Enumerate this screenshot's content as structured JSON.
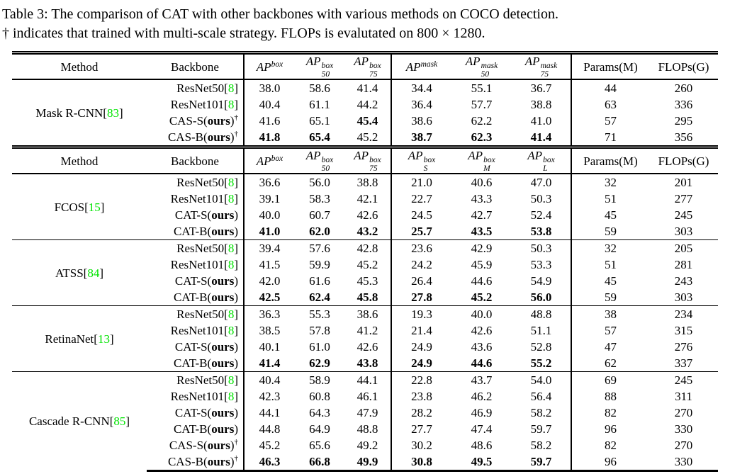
{
  "caption": {
    "line1": "Table 3: The comparison of CAT with other backbones with various methods on COCO detection.",
    "line2_prefix": "† indicates that trained with multi-scale strategy. FLOPs is evalutated on ",
    "line2_math": "800 × 1280",
    "line2_suffix": "."
  },
  "colors": {
    "ref_green": "#00e400",
    "text": "#000000"
  },
  "punct": {
    "open_bracket": "[",
    "close_bracket": "]",
    "open_paren": "(",
    "close_paren": ")",
    "dagger": "†"
  },
  "shared": {
    "ours_label": "ours"
  },
  "headers": {
    "method": "Method",
    "backbone": "Backbone",
    "params": "Params(M)",
    "flops": "FLOPs(G)",
    "groupA": [
      {
        "base": "AP",
        "sup": "box",
        "sub": ""
      },
      {
        "base": "AP",
        "sup": "box",
        "sub": "50"
      },
      {
        "base": "AP",
        "sup": "box",
        "sub": "75"
      },
      {
        "base": "AP",
        "sup": "mask",
        "sub": ""
      },
      {
        "base": "AP",
        "sup": "mask",
        "sub": "50"
      },
      {
        "base": "AP",
        "sup": "mask",
        "sub": "75"
      }
    ],
    "groupB": [
      {
        "base": "AP",
        "sup": "box",
        "sub": ""
      },
      {
        "base": "AP",
        "sup": "box",
        "sub": "50"
      },
      {
        "base": "AP",
        "sup": "box",
        "sub": "75"
      },
      {
        "base": "AP",
        "sup": "box",
        "sub": "S"
      },
      {
        "base": "AP",
        "sup": "box",
        "sub": "M"
      },
      {
        "base": "AP",
        "sup": "box",
        "sub": "L"
      }
    ]
  },
  "sections": [
    {
      "method": "Mask R-CNN",
      "method_ref": "83",
      "subtable": "A",
      "rows": [
        {
          "backbone": "ResNet50",
          "ref": "8",
          "vals": [
            "38.0",
            "58.6",
            "41.4",
            "34.4",
            "55.1",
            "36.7"
          ],
          "bold": [
            0,
            0,
            0,
            0,
            0,
            0
          ],
          "params": "44",
          "flops": "260"
        },
        {
          "backbone": "ResNet101",
          "ref": "8",
          "vals": [
            "40.4",
            "61.1",
            "44.2",
            "36.4",
            "57.7",
            "38.8"
          ],
          "bold": [
            0,
            0,
            0,
            0,
            0,
            0
          ],
          "params": "63",
          "flops": "336"
        },
        {
          "backbone": "CAS-S",
          "ours": true,
          "dagger": true,
          "vals": [
            "41.6",
            "65.1",
            "45.4",
            "38.6",
            "62.2",
            "41.0"
          ],
          "bold": [
            0,
            0,
            1,
            0,
            0,
            0
          ],
          "params": "57",
          "flops": "295"
        },
        {
          "backbone": "CAS-B",
          "ours": true,
          "dagger": true,
          "vals": [
            "41.8",
            "65.4",
            "45.2",
            "38.7",
            "62.3",
            "41.4"
          ],
          "bold": [
            1,
            1,
            0,
            1,
            1,
            1
          ],
          "params": "71",
          "flops": "356"
        }
      ]
    },
    {
      "method": "FCOS",
      "method_ref": "15",
      "subtable": "B",
      "rows": [
        {
          "backbone": "ResNet50",
          "ref": "8",
          "vals": [
            "36.6",
            "56.0",
            "38.8",
            "21.0",
            "40.6",
            "47.0"
          ],
          "bold": [
            0,
            0,
            0,
            0,
            0,
            0
          ],
          "params": "32",
          "flops": "201"
        },
        {
          "backbone": "ResNet101",
          "ref": "8",
          "vals": [
            "39.1",
            "58.3",
            "42.1",
            "22.7",
            "43.3",
            "50.3"
          ],
          "bold": [
            0,
            0,
            0,
            0,
            0,
            0
          ],
          "params": "51",
          "flops": "277"
        },
        {
          "backbone": "CAT-S",
          "ours": true,
          "dagger": false,
          "vals": [
            "40.0",
            "60.7",
            "42.6",
            "24.5",
            "42.7",
            "52.4"
          ],
          "bold": [
            0,
            0,
            0,
            0,
            0,
            0
          ],
          "params": "45",
          "flops": "245"
        },
        {
          "backbone": "CAT-B",
          "ours": true,
          "dagger": false,
          "vals": [
            "41.0",
            "62.0",
            "43.2",
            "25.7",
            "43.5",
            "53.8"
          ],
          "bold": [
            1,
            1,
            1,
            1,
            1,
            1
          ],
          "params": "59",
          "flops": "303"
        }
      ]
    },
    {
      "method": "ATSS",
      "method_ref": "84",
      "subtable": "B",
      "rows": [
        {
          "backbone": "ResNet50",
          "ref": "8",
          "vals": [
            "39.4",
            "57.6",
            "42.8",
            "23.6",
            "42.9",
            "50.3"
          ],
          "bold": [
            0,
            0,
            0,
            0,
            0,
            0
          ],
          "params": "32",
          "flops": "205"
        },
        {
          "backbone": "ResNet101",
          "ref": "8",
          "vals": [
            "41.5",
            "59.9",
            "45.2",
            "24.2",
            "45.9",
            "53.3"
          ],
          "bold": [
            0,
            0,
            0,
            0,
            0,
            0
          ],
          "params": "51",
          "flops": "281"
        },
        {
          "backbone": "CAT-S",
          "ours": true,
          "dagger": false,
          "vals": [
            "42.0",
            "61.6",
            "45.3",
            "26.4",
            "44.6",
            "54.9"
          ],
          "bold": [
            0,
            0,
            0,
            0,
            0,
            0
          ],
          "params": "45",
          "flops": "243"
        },
        {
          "backbone": "CAT-B",
          "ours": true,
          "dagger": false,
          "vals": [
            "42.5",
            "62.4",
            "45.8",
            "27.8",
            "45.2",
            "56.0"
          ],
          "bold": [
            1,
            1,
            1,
            1,
            1,
            1
          ],
          "params": "59",
          "flops": "303"
        }
      ]
    },
    {
      "method": "RetinaNet",
      "method_ref": "13",
      "subtable": "B",
      "rows": [
        {
          "backbone": "ResNet50",
          "ref": "8",
          "vals": [
            "36.3",
            "55.3",
            "38.6",
            "19.3",
            "40.0",
            "48.8"
          ],
          "bold": [
            0,
            0,
            0,
            0,
            0,
            0
          ],
          "params": "38",
          "flops": "234"
        },
        {
          "backbone": "ResNet101",
          "ref": "8",
          "vals": [
            "38.5",
            "57.8",
            "41.2",
            "21.4",
            "42.6",
            "51.1"
          ],
          "bold": [
            0,
            0,
            0,
            0,
            0,
            0
          ],
          "params": "57",
          "flops": "315"
        },
        {
          "backbone": "CAT-S",
          "ours": true,
          "dagger": false,
          "vals": [
            "40.1",
            "61.0",
            "42.6",
            "24.9",
            "43.6",
            "52.8"
          ],
          "bold": [
            0,
            0,
            0,
            0,
            0,
            0
          ],
          "params": "47",
          "flops": "276"
        },
        {
          "backbone": "CAT-B",
          "ours": true,
          "dagger": false,
          "vals": [
            "41.4",
            "62.9",
            "43.8",
            "24.9",
            "44.6",
            "55.2"
          ],
          "bold": [
            1,
            1,
            1,
            1,
            1,
            1
          ],
          "params": "62",
          "flops": "337"
        }
      ]
    },
    {
      "method": "Cascade R-CNN",
      "method_ref": "85",
      "subtable": "B",
      "rows": [
        {
          "backbone": "ResNet50",
          "ref": "8",
          "vals": [
            "40.4",
            "58.9",
            "44.1",
            "22.8",
            "43.7",
            "54.0"
          ],
          "bold": [
            0,
            0,
            0,
            0,
            0,
            0
          ],
          "params": "69",
          "flops": "245"
        },
        {
          "backbone": "ResNet101",
          "ref": "8",
          "vals": [
            "42.3",
            "60.8",
            "46.1",
            "23.8",
            "46.2",
            "56.4"
          ],
          "bold": [
            0,
            0,
            0,
            0,
            0,
            0
          ],
          "params": "88",
          "flops": "311"
        },
        {
          "backbone": "CAT-S",
          "ours": true,
          "dagger": false,
          "vals": [
            "44.1",
            "64.3",
            "47.9",
            "28.2",
            "46.9",
            "58.2"
          ],
          "bold": [
            0,
            0,
            0,
            0,
            0,
            0
          ],
          "params": "82",
          "flops": "270"
        },
        {
          "backbone": "CAT-B",
          "ours": true,
          "dagger": false,
          "vals": [
            "44.8",
            "64.9",
            "48.8",
            "27.7",
            "47.4",
            "59.7"
          ],
          "bold": [
            0,
            0,
            0,
            0,
            0,
            0
          ],
          "params": "96",
          "flops": "330"
        },
        {
          "backbone": "CAS-S",
          "ours": true,
          "dagger": true,
          "vals": [
            "45.2",
            "65.6",
            "49.2",
            "30.2",
            "48.6",
            "58.2"
          ],
          "bold": [
            0,
            0,
            0,
            0,
            0,
            0
          ],
          "params": "82",
          "flops": "270"
        },
        {
          "backbone": "CAS-B",
          "ours": true,
          "dagger": true,
          "vals": [
            "46.3",
            "66.8",
            "49.9",
            "30.8",
            "49.5",
            "59.7"
          ],
          "bold": [
            1,
            1,
            1,
            1,
            1,
            1
          ],
          "params": "96",
          "flops": "330"
        }
      ]
    }
  ]
}
